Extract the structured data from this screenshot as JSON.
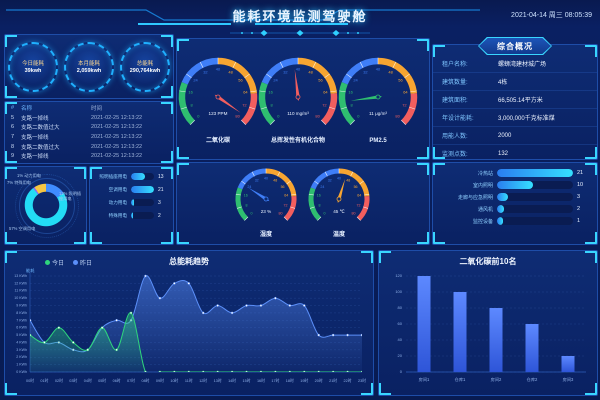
{
  "header": {
    "title": "能耗环境监测驾驶舱",
    "datetime": "2021-04-14 周三 08:05:39"
  },
  "kpis": {
    "items": [
      {
        "label": "今日能耗",
        "value": "39kwh"
      },
      {
        "label": "本月能耗",
        "value": "2,059kwh"
      },
      {
        "label": "总能耗",
        "value": "290,764kwh"
      }
    ]
  },
  "alarms": {
    "col_index": "#",
    "col_name": "名称",
    "col_time": "时间",
    "rows": [
      {
        "index": "5",
        "name": "支路一掉线",
        "time": "2021-02-25 12:13:22"
      },
      {
        "index": "6",
        "name": "支路二数值过大",
        "time": "2021-02-25 12:13:22"
      },
      {
        "index": "7",
        "name": "支路一掉线",
        "time": "2021-02-25 12:13:22"
      },
      {
        "index": "8",
        "name": "支路二数值过大",
        "time": "2021-02-25 12:13:22"
      },
      {
        "index": "9",
        "name": "支路一掉线",
        "time": "2021-02-25 12:13:22"
      }
    ]
  },
  "energy_pie": {
    "slices": [
      {
        "label": "照明插座用电",
        "pct": 12,
        "color": "#3f8cff"
      },
      {
        "label": "空调用电",
        "pct": 57,
        "color": "#23dcf5"
      },
      {
        "label": "动力用电",
        "pct": 1,
        "color": "#8a6cf0"
      },
      {
        "label": "特殊用电",
        "pct": 7,
        "color": "#f5c542"
      }
    ]
  },
  "usage_bars": {
    "max": 21,
    "items": [
      {
        "label": "照明插座用电",
        "value": 13
      },
      {
        "label": "空调用电",
        "value": 21
      },
      {
        "label": "动力用电",
        "value": 3
      },
      {
        "label": "特殊用电",
        "value": 2
      }
    ]
  },
  "gauges": {
    "max": 80,
    "tick_step": 8,
    "segments": [
      {
        "to": 20,
        "color": "#2fbe70"
      },
      {
        "to": 40,
        "color": "#3f7ef7"
      },
      {
        "to": 65,
        "color": "#f7a531"
      },
      {
        "to": 80,
        "color": "#f25e5e"
      }
    ],
    "top": [
      {
        "label": "二氧化碳",
        "value_text": "123 PPM",
        "needle": 77,
        "needle_color": "#f25e5e"
      },
      {
        "label": "总挥发性有机化合物",
        "value_text": "110 mg/m³",
        "needle": 38,
        "needle_color": "#f25e5e"
      },
      {
        "label": "PM2.5",
        "value_text": "11 μg/m³",
        "needle": 11,
        "needle_color": "#2fbe70"
      }
    ],
    "bottom": [
      {
        "label": "湿度",
        "value_text": "23 %",
        "needle": 23,
        "needle_color": "#3f7ef7"
      },
      {
        "label": "温度",
        "value_text": "45 ℃",
        "needle": 45,
        "needle_color": "#f7a531"
      }
    ]
  },
  "overview": {
    "title": "综合概况",
    "rows": [
      {
        "label": "租户名称:",
        "value": "螺蛳湾建材城广场"
      },
      {
        "label": "建筑数量:",
        "value": "4栋"
      },
      {
        "label": "建筑面积:",
        "value": "66,505.14平方米"
      },
      {
        "label": "年设计能耗:",
        "value": "3,000,000千克标准煤"
      },
      {
        "label": "用能人数:",
        "value": "2000"
      },
      {
        "label": "监测点数:",
        "value": "132"
      }
    ]
  },
  "device_bars": {
    "max": 21,
    "items": [
      {
        "label": "冷热站",
        "value": 21
      },
      {
        "label": "室内照明",
        "value": 10
      },
      {
        "label": "走廊与应急照明",
        "value": 3
      },
      {
        "label": "通风机",
        "value": 2
      },
      {
        "label": "监控设备",
        "value": 1
      }
    ]
  },
  "chart_data": [
    {
      "type": "line",
      "title": "总能耗趋势",
      "ylabel": "能耗",
      "unit": "KWh",
      "ylim": [
        0,
        13
      ],
      "grid": true,
      "legend_position": "top-left",
      "x": [
        "00时",
        "01时",
        "02时",
        "03时",
        "04时",
        "05时",
        "06时",
        "07时",
        "08时",
        "09时",
        "10时",
        "11时",
        "12时",
        "13时",
        "14时",
        "15时",
        "16时",
        "17时",
        "18时",
        "19时",
        "20时",
        "21时",
        "22时",
        "23时"
      ],
      "series": [
        {
          "name": "今日",
          "color": "#2fd57c",
          "values": [
            5,
            4,
            6,
            4,
            3,
            6,
            3,
            8,
            0,
            0,
            0,
            0,
            0,
            0,
            0,
            0,
            0,
            0,
            0,
            0,
            0,
            0,
            0,
            0
          ]
        },
        {
          "name": "昨日",
          "color": "#5b8ff9",
          "values": [
            7,
            4,
            4,
            3,
            3,
            6,
            7,
            7,
            13,
            10,
            12,
            12,
            8,
            9,
            8,
            9,
            9,
            10,
            9,
            9,
            5,
            5,
            5,
            5
          ]
        }
      ]
    },
    {
      "type": "bar",
      "title": "二氧化碳前10名",
      "categories": [
        "房间1",
        "仓库1",
        "房间2",
        "仓库2",
        "房间3"
      ],
      "values": [
        120,
        100,
        80,
        60,
        20
      ],
      "ylim": [
        0,
        120
      ],
      "ytick_step": 20,
      "grid": true,
      "bar_color": "#3e6bf2"
    }
  ]
}
